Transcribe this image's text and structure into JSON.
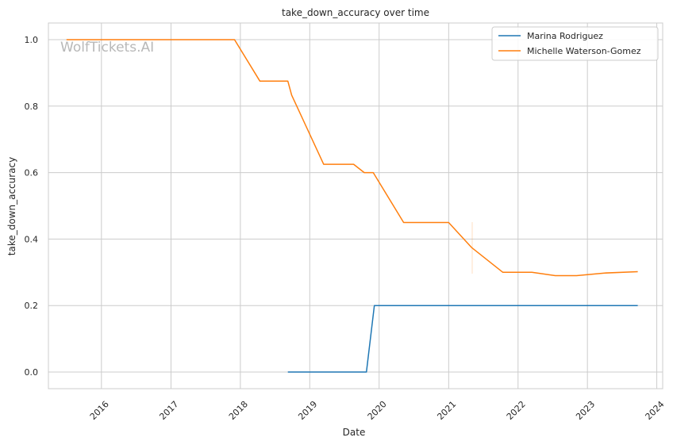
{
  "chart_data": {
    "type": "line",
    "title": "take_down_accuracy over time",
    "xlabel": "Date",
    "ylabel": "take_down_accuracy",
    "watermark": "WolfTickets.AI",
    "x_ticks": [
      "2016",
      "2017",
      "2018",
      "2019",
      "2020",
      "2021",
      "2022",
      "2023",
      "2024"
    ],
    "y_ticks": [
      "0.0",
      "0.2",
      "0.4",
      "0.6",
      "0.8",
      "1.0"
    ],
    "xlim": [
      "2015-03-28",
      "2024-02-01"
    ],
    "ylim": [
      -0.05,
      1.05
    ],
    "grid": true,
    "legend_position": "top-right",
    "series": [
      {
        "name": "Marina Rodriguez",
        "color": "#1f77b4",
        "points": [
          [
            "2018-09-08",
            0.0
          ],
          [
            "2019-10-26",
            0.0
          ],
          [
            "2019-12-07",
            0.2
          ],
          [
            "2023-09-23",
            0.2
          ]
        ]
      },
      {
        "name": "Michelle Waterson-Gomez",
        "color": "#ff7f0e",
        "points": [
          [
            "2015-07-01",
            1.0
          ],
          [
            "2017-12-01",
            1.0
          ],
          [
            "2018-04-14",
            0.875
          ],
          [
            "2018-09-08",
            0.875
          ],
          [
            "2018-09-28",
            0.833
          ],
          [
            "2019-03-15",
            0.625
          ],
          [
            "2019-08-20",
            0.625
          ],
          [
            "2019-10-15",
            0.6
          ],
          [
            "2019-12-01",
            0.6
          ],
          [
            "2020-05-09",
            0.45
          ],
          [
            "2021-01-01",
            0.45
          ],
          [
            "2021-05-01",
            0.375
          ],
          [
            "2021-10-13",
            0.3
          ],
          [
            "2022-03-15",
            0.3
          ],
          [
            "2022-07-16",
            0.29
          ],
          [
            "2022-11-05",
            0.29
          ],
          [
            "2023-04-01",
            0.298
          ],
          [
            "2023-09-23",
            0.302
          ]
        ]
      }
    ]
  }
}
